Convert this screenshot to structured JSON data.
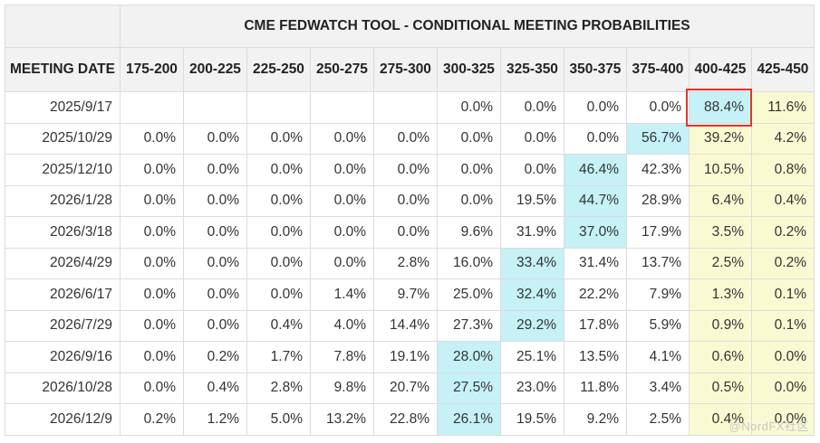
{
  "chart_data": {
    "type": "table",
    "title": "CME FEDWATCH TOOL - CONDITIONAL MEETING PROBABILITIES",
    "row_header": "MEETING DATE",
    "columns": [
      "175-200",
      "200-225",
      "225-250",
      "250-275",
      "275-300",
      "300-325",
      "325-350",
      "350-375",
      "375-400",
      "400-425",
      "425-450"
    ],
    "rows": [
      {
        "date": "2025/9/17",
        "values": [
          "",
          "",
          "",
          "",
          "",
          "0.0%",
          "0.0%",
          "0.0%",
          "0.0%",
          "88.4%",
          "11.6%"
        ]
      },
      {
        "date": "2025/10/29",
        "values": [
          "0.0%",
          "0.0%",
          "0.0%",
          "0.0%",
          "0.0%",
          "0.0%",
          "0.0%",
          "0.0%",
          "56.7%",
          "39.2%",
          "4.2%"
        ]
      },
      {
        "date": "2025/12/10",
        "values": [
          "0.0%",
          "0.0%",
          "0.0%",
          "0.0%",
          "0.0%",
          "0.0%",
          "0.0%",
          "46.4%",
          "42.3%",
          "10.5%",
          "0.8%"
        ]
      },
      {
        "date": "2026/1/28",
        "values": [
          "0.0%",
          "0.0%",
          "0.0%",
          "0.0%",
          "0.0%",
          "0.0%",
          "19.5%",
          "44.7%",
          "28.9%",
          "6.4%",
          "0.4%"
        ]
      },
      {
        "date": "2026/3/18",
        "values": [
          "0.0%",
          "0.0%",
          "0.0%",
          "0.0%",
          "0.0%",
          "9.6%",
          "31.9%",
          "37.0%",
          "17.9%",
          "3.5%",
          "0.2%"
        ]
      },
      {
        "date": "2026/4/29",
        "values": [
          "0.0%",
          "0.0%",
          "0.0%",
          "0.0%",
          "2.8%",
          "16.0%",
          "33.4%",
          "31.4%",
          "13.7%",
          "2.5%",
          "0.2%"
        ]
      },
      {
        "date": "2026/6/17",
        "values": [
          "0.0%",
          "0.0%",
          "0.0%",
          "1.4%",
          "9.7%",
          "25.0%",
          "32.4%",
          "22.2%",
          "7.9%",
          "1.3%",
          "0.1%"
        ]
      },
      {
        "date": "2026/7/29",
        "values": [
          "0.0%",
          "0.0%",
          "0.4%",
          "4.0%",
          "14.4%",
          "27.3%",
          "29.2%",
          "17.8%",
          "5.9%",
          "0.9%",
          "0.1%"
        ]
      },
      {
        "date": "2026/9/16",
        "values": [
          "0.0%",
          "0.2%",
          "1.7%",
          "7.8%",
          "19.1%",
          "28.0%",
          "25.1%",
          "13.5%",
          "4.1%",
          "0.6%",
          "0.0%"
        ]
      },
      {
        "date": "2026/10/28",
        "values": [
          "0.0%",
          "0.4%",
          "2.8%",
          "9.8%",
          "20.7%",
          "27.5%",
          "23.0%",
          "11.8%",
          "3.4%",
          "0.5%",
          "0.0%"
        ]
      },
      {
        "date": "2026/12/9",
        "values": [
          "0.2%",
          "1.2%",
          "5.0%",
          "13.2%",
          "22.8%",
          "26.1%",
          "19.5%",
          "9.2%",
          "2.5%",
          "0.4%",
          "0.0%"
        ]
      }
    ],
    "current_range": "400-425",
    "highlighted_cell": {
      "date": "2025/9/17",
      "column": "400-425"
    },
    "colors": {
      "peak": "#c5f1f7",
      "above_current": "#fafad2",
      "highlight_border": "#e8322b",
      "header_bg": "#f2f2f2"
    }
  },
  "watermark": "@NordFX社区"
}
